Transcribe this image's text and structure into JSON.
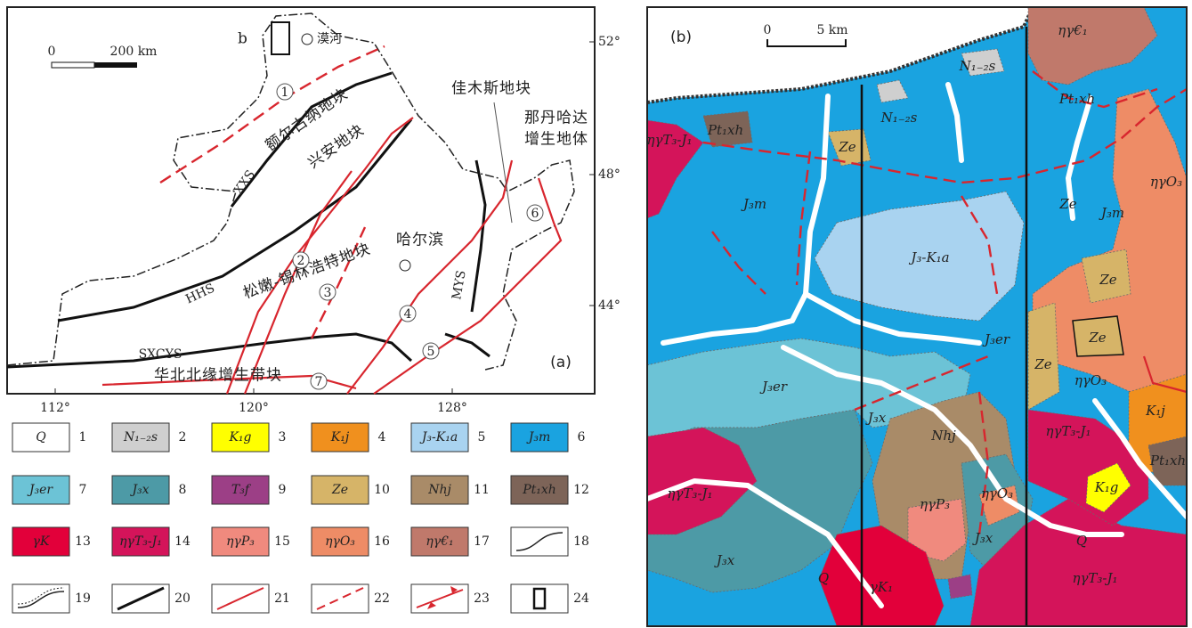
{
  "panel_a": {
    "label": "(a)",
    "scale": [
      "0",
      "200 km"
    ],
    "lat_labels": [
      "52°",
      "48°",
      "44°"
    ],
    "lon_labels": [
      "112°",
      "120°",
      "128°"
    ],
    "place_labels": [
      "b",
      "漠河",
      "佳木斯地块",
      "那丹哈达",
      "增生地体",
      "哈尔滨"
    ],
    "block_labels": [
      "额尔古纳地块",
      "兴安地块",
      "松嫩-锡林浩特地块",
      "华北北缘增生带块"
    ],
    "suture_labels": [
      "XXS",
      "HHS",
      "MYS",
      "SXCYS"
    ],
    "fault_numbers": [
      "1",
      "2",
      "3",
      "4",
      "5",
      "6",
      "7"
    ]
  },
  "legend": [
    {
      "symbol": "Q",
      "number": "1",
      "color": "#ffffff"
    },
    {
      "symbol": "N₁₋₂s",
      "number": "2",
      "color": "#cfcfcf"
    },
    {
      "symbol": "K₁g",
      "number": "3",
      "color": "#ffff00"
    },
    {
      "symbol": "K₁j",
      "number": "4",
      "color": "#f0901e"
    },
    {
      "symbol": "J₃-K₁a",
      "number": "5",
      "color": "#a9d3f0"
    },
    {
      "symbol": "J₃m",
      "number": "6",
      "color": "#1aa3e0"
    },
    {
      "symbol": "J₃er",
      "number": "7",
      "color": "#6cc3d6"
    },
    {
      "symbol": "J₃x",
      "number": "8",
      "color": "#4d9aa6"
    },
    {
      "symbol": "T₃f",
      "number": "9",
      "color": "#9c3f86"
    },
    {
      "symbol": "Ze",
      "number": "10",
      "color": "#d6b468"
    },
    {
      "symbol": "Nhj",
      "number": "11",
      "color": "#a98b68"
    },
    {
      "symbol": "Pt₁xh",
      "number": "12",
      "color": "#7d6458"
    },
    {
      "symbol": "γK",
      "number": "13",
      "color": "#e2003a"
    },
    {
      "symbol": "ηγT₃-J₁",
      "number": "14",
      "color": "#d4145a"
    },
    {
      "symbol": "ηγP₃",
      "number": "15",
      "color": "#f08a7e"
    },
    {
      "symbol": "ηγO₃",
      "number": "16",
      "color": "#ee8c66"
    },
    {
      "symbol": "ηγ€₁",
      "number": "17",
      "color": "#c0796b"
    },
    {
      "number": "18"
    },
    {
      "number": "19"
    },
    {
      "number": "20"
    },
    {
      "number": "21"
    },
    {
      "number": "22"
    },
    {
      "number": "23"
    },
    {
      "number": "24"
    }
  ],
  "panel_b": {
    "label": "(b)",
    "scale": [
      "0",
      "5 km"
    ],
    "unit_labels": [
      "ηγ€₁",
      "N₁₋₂s",
      "Pt₁xh",
      "N₁₋₂s",
      "ηγT₃-J₁",
      "Pt₁xh",
      "Ze",
      "J₃m",
      "ηγO₃",
      "Ze",
      "J₃m",
      "J₃-K₁a",
      "Ze",
      "Ze",
      "Ze",
      "J₃er",
      "ηγO₃",
      "J₃er",
      "J₃x",
      "Nhj",
      "K₁j",
      "ηγT₃-J₁",
      "K₁g",
      "Pt₁xh",
      "ηγP₃",
      "ηγO₃",
      "ηγT₃-J₁",
      "J₃x",
      "Q",
      "J₃x",
      "Q",
      "γK₁",
      "ηγT₃-J₁"
    ]
  }
}
